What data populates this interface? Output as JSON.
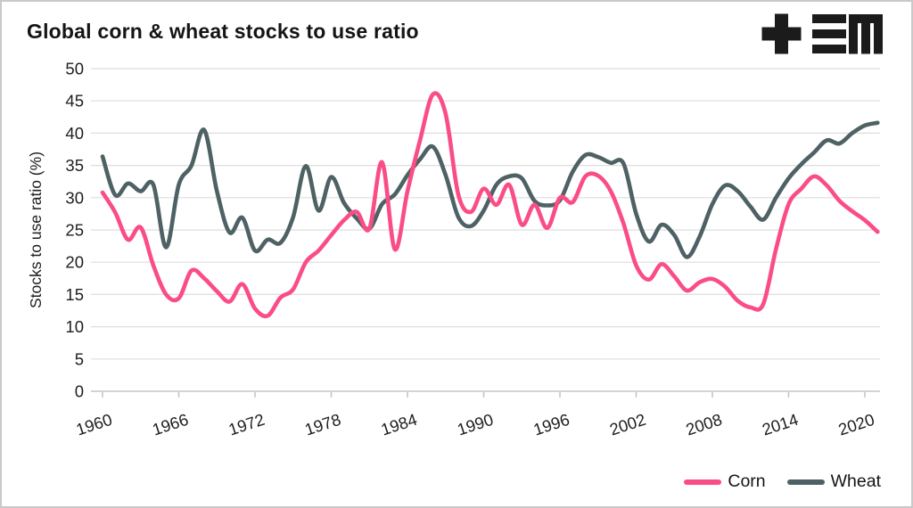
{
  "title": "Global corn & wheat stocks to use ratio",
  "logo": {
    "symbols": "+ ≡ M"
  },
  "legend": {
    "position": "bottom-right"
  },
  "colors": {
    "corn": "#fa4d86",
    "wheat": "#4e6164",
    "grid": "#dedede",
    "axis": "#c6c6c6",
    "text": "#1e1e1e",
    "background": "#ffffff"
  },
  "chart_data": {
    "type": "line",
    "title": "Global corn & wheat stocks to use ratio",
    "xlabel": "",
    "ylabel": "Stocks to use ratio (%)",
    "ylim": [
      0,
      50
    ],
    "yticks": [
      0,
      5,
      10,
      15,
      20,
      25,
      30,
      35,
      40,
      45,
      50
    ],
    "xticks": [
      1960,
      1966,
      1972,
      1978,
      1984,
      1990,
      1996,
      2002,
      2008,
      2014,
      2020
    ],
    "grid": true,
    "legend_position": "bottom-right",
    "years": [
      1960,
      1961,
      1962,
      1963,
      1964,
      1965,
      1966,
      1967,
      1968,
      1969,
      1970,
      1971,
      1972,
      1973,
      1974,
      1975,
      1976,
      1977,
      1978,
      1979,
      1980,
      1981,
      1982,
      1983,
      1984,
      1985,
      1986,
      1987,
      1988,
      1989,
      1990,
      1991,
      1992,
      1993,
      1994,
      1995,
      1996,
      1997,
      1998,
      1999,
      2000,
      2001,
      2002,
      2003,
      2004,
      2005,
      2006,
      2007,
      2008,
      2009,
      2010,
      2011,
      2012,
      2013,
      2014,
      2015,
      2016,
      2017,
      2018,
      2019,
      2020,
      2021
    ],
    "series": [
      {
        "name": "Corn",
        "color": "#fa4d86",
        "values": [
          30.8,
          27.7,
          23.5,
          25.4,
          19.5,
          15.0,
          14.4,
          18.7,
          17.5,
          15.5,
          13.9,
          16.6,
          12.8,
          11.7,
          14.5,
          15.8,
          20.0,
          21.8,
          24.2,
          26.5,
          27.8,
          25.2,
          35.5,
          22.0,
          31.0,
          39.0,
          46.0,
          43.0,
          30.5,
          27.8,
          31.4,
          28.9,
          32.0,
          25.8,
          28.9,
          25.3,
          30.0,
          29.3,
          33.3,
          33.4,
          31.0,
          26.0,
          19.5,
          17.3,
          19.7,
          17.8,
          15.6,
          16.9,
          17.4,
          16.2,
          14.0,
          13.0,
          13.5,
          22.0,
          29.0,
          31.4,
          33.3,
          31.9,
          29.5,
          27.9,
          26.5,
          24.7
        ]
      },
      {
        "name": "Wheat",
        "color": "#4e6164",
        "values": [
          36.4,
          30.4,
          32.2,
          31.0,
          32.0,
          22.3,
          32.0,
          35.0,
          40.5,
          31.0,
          24.6,
          26.9,
          21.8,
          23.5,
          23.0,
          27.0,
          34.9,
          28.0,
          33.2,
          29.2,
          26.8,
          25.2,
          29.0,
          30.5,
          33.5,
          36.0,
          37.9,
          33.5,
          27.0,
          25.6,
          28.0,
          32.0,
          33.3,
          33.0,
          29.5,
          28.8,
          29.6,
          34.0,
          36.6,
          36.3,
          35.4,
          35.3,
          27.5,
          23.2,
          25.8,
          24.2,
          20.8,
          24.0,
          29.0,
          31.9,
          31.0,
          28.6,
          26.6,
          30.0,
          33.0,
          35.2,
          37.0,
          38.9,
          38.4,
          40.0,
          41.2,
          41.6
        ]
      }
    ]
  }
}
